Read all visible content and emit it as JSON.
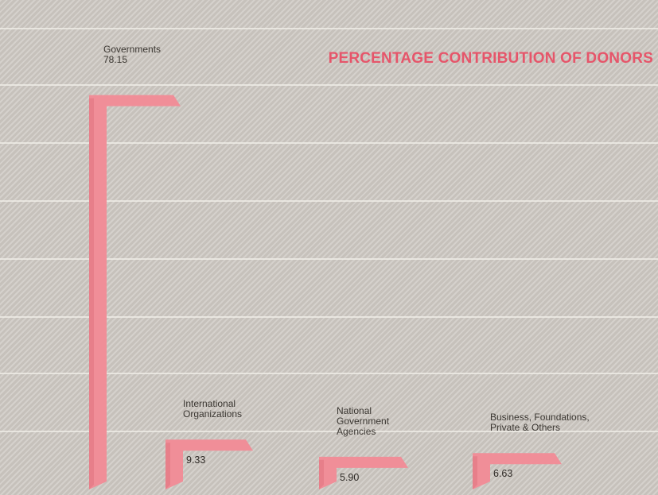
{
  "colors": {
    "bar_face": "#f08e98",
    "bar_side": "#dc6c79",
    "title": "#e6556a",
    "gridline": "#f2efea",
    "text": "#3a3631"
  },
  "chart_data": {
    "type": "bar",
    "title": "PERCENTAGE CONTRIBUTION OF DONORS",
    "unit": "percent",
    "grid": true,
    "ylim": [
      0,
      100
    ],
    "categories": [
      [
        "Governments"
      ],
      [
        "International",
        "Organizations"
      ],
      [
        "National",
        "Government",
        "Agencies"
      ],
      [
        "Business, Foundations,",
        "Private & Others"
      ]
    ],
    "values": [
      78.15,
      9.33,
      5.9,
      6.63
    ],
    "value_labels": [
      "78.15",
      "9.33",
      "5.90",
      "6.63"
    ]
  }
}
